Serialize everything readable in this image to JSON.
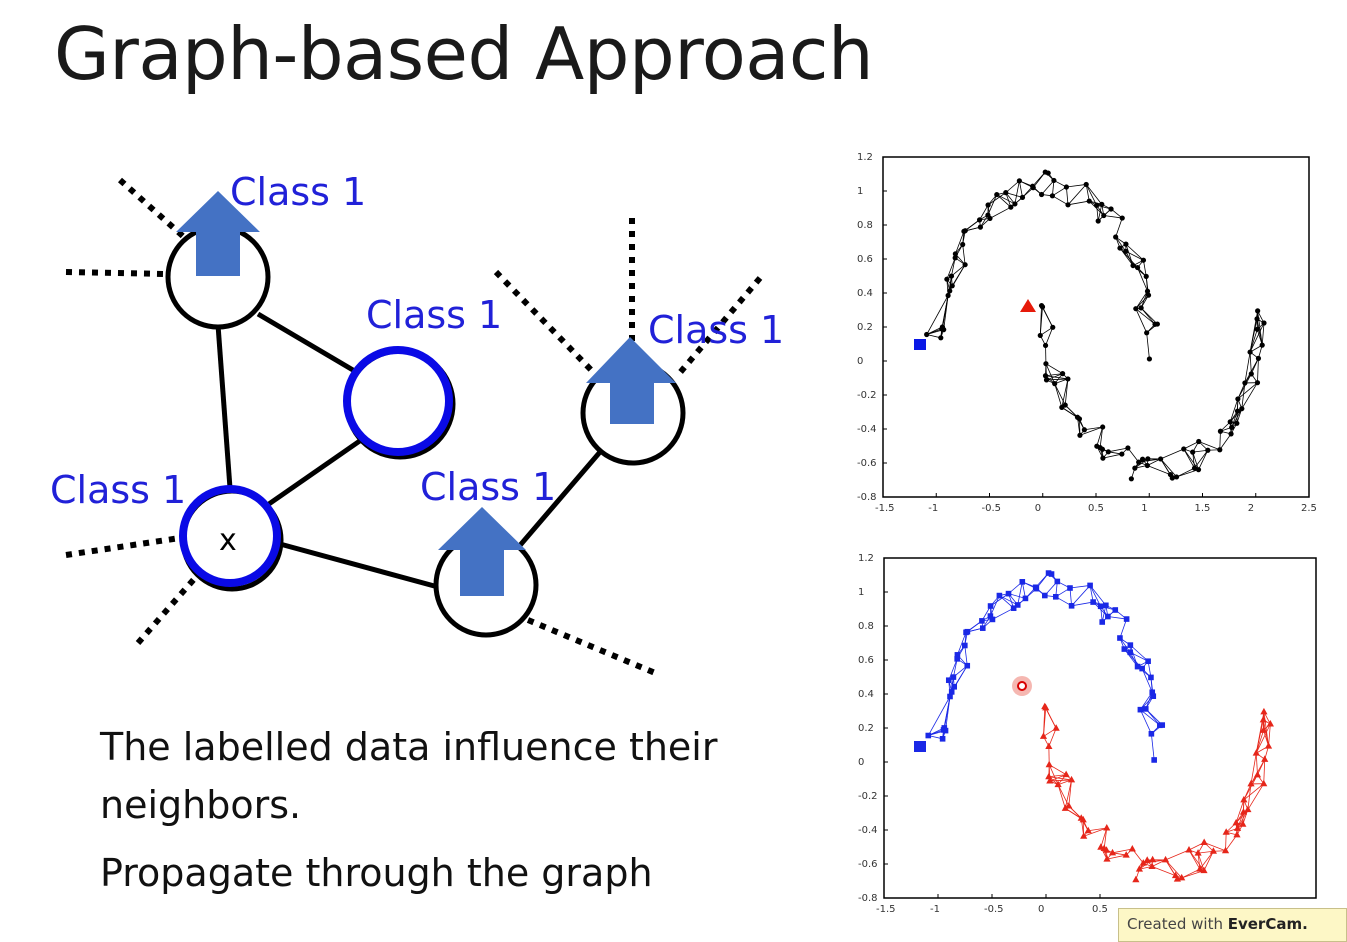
{
  "slide": {
    "title": "Graph-based Approach",
    "text_line1": "The labelled data influence their",
    "text_line2": "neighbors.",
    "text_line3": "Propagate through the graph"
  },
  "diagram": {
    "class_label": "Class 1",
    "node_x_label": "x",
    "label_color": "#2121d8",
    "arrow_color": "#4472c4"
  },
  "plots": {
    "top": {
      "x_ticks": [
        "-1.5",
        "-1",
        "-0.5",
        "0",
        "0.5",
        "1",
        "1.5",
        "2",
        "2.5"
      ],
      "y_ticks": [
        "1.2",
        "1",
        "0.8",
        "0.6",
        "0.4",
        "0.2",
        "0",
        "-0.2",
        "-0.4",
        "-0.6",
        "-0.8"
      ],
      "graph_color": "#000000",
      "labelled_square_color": "#0a18e6",
      "labelled_triangle_color": "#e61a0a"
    },
    "bottom": {
      "x_ticks": [
        "-1.5",
        "-1",
        "-0.5",
        "0",
        "0.5"
      ],
      "y_ticks": [
        "1.2",
        "1",
        "0.8",
        "0.6",
        "0.4",
        "0.2",
        "0",
        "-0.2",
        "-0.4",
        "-0.6",
        "-0.8"
      ],
      "class_a_color": "#1a28e6",
      "class_b_color": "#e6261a"
    }
  },
  "watermark": {
    "prefix": "Created with ",
    "brand": "EverCam."
  }
}
